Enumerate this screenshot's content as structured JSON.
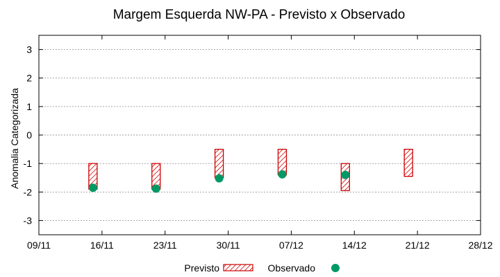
{
  "chart_data": {
    "type": "range-bar-with-points",
    "title": "Margem Esquerda NW-PA - Previsto x Observado",
    "ylabel": "Anomalia Categorizada",
    "xlabel": "",
    "ylim": [
      -3.5,
      3.5
    ],
    "yticks": [
      3,
      2,
      1,
      0,
      -1,
      -2,
      -3
    ],
    "xlim": [
      0,
      49
    ],
    "xticks": [
      {
        "pos": 0,
        "label": "09/11"
      },
      {
        "pos": 7,
        "label": "16/11"
      },
      {
        "pos": 14,
        "label": "23/11"
      },
      {
        "pos": 21,
        "label": "30/11"
      },
      {
        "pos": 28,
        "label": "07/12"
      },
      {
        "pos": 35,
        "label": "14/12"
      },
      {
        "pos": 42,
        "label": "21/12"
      },
      {
        "pos": 49,
        "label": "28/12"
      }
    ],
    "grid": "y-dotted",
    "legend_position": "bottom-center",
    "series": [
      {
        "name": "Previsto",
        "kind": "range",
        "color": "#cc0000",
        "points": [
          {
            "x": 6,
            "low": -1.9,
            "high": -1.0
          },
          {
            "x": 13,
            "low": -1.9,
            "high": -1.0
          },
          {
            "x": 20,
            "low": -1.5,
            "high": -0.5
          },
          {
            "x": 27,
            "low": -1.4,
            "high": -0.5
          },
          {
            "x": 34,
            "low": -1.95,
            "high": -1.0
          },
          {
            "x": 41,
            "low": -1.45,
            "high": -0.5
          }
        ]
      },
      {
        "name": "Observado",
        "kind": "point",
        "color": "#009966",
        "points": [
          {
            "x": 6,
            "y": -1.85
          },
          {
            "x": 13,
            "y": -1.88
          },
          {
            "x": 20,
            "y": -1.52
          },
          {
            "x": 27,
            "y": -1.38
          },
          {
            "x": 34,
            "y": -1.4
          }
        ]
      }
    ]
  }
}
